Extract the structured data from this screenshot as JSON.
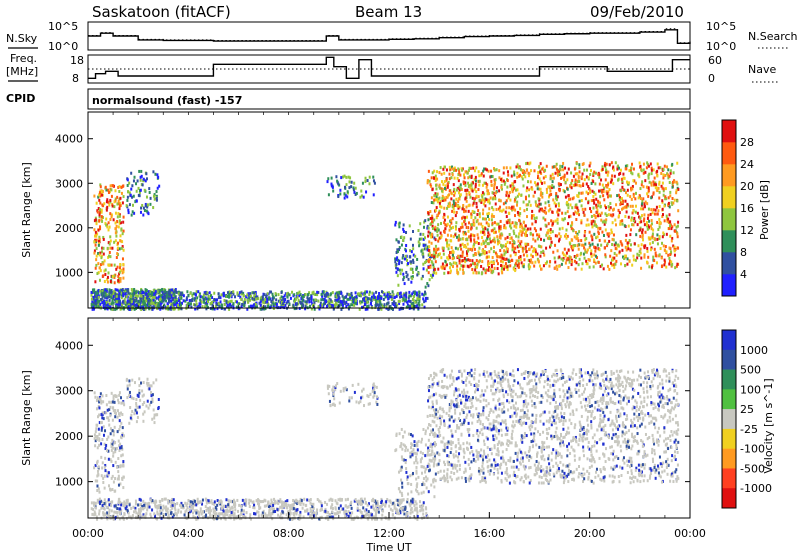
{
  "header": {
    "station": "Saskatoon (fitACF)",
    "beam": "Beam 13",
    "date": "09/Feb/2010",
    "cpid_label": "CPID",
    "cpid_value": "normalsound (fast) -157"
  },
  "chart_data": [
    {
      "type": "line",
      "panel": "noise",
      "left_label": "N.Sky",
      "right_label": "N.Search",
      "y_scale": "log",
      "ytick_labels": [
        "10^5",
        "10^0"
      ],
      "right_tick_labels": [
        "10^5",
        "10^0"
      ],
      "x": [
        0,
        0.5,
        1,
        2,
        3,
        4,
        5,
        6,
        7,
        8,
        9,
        9.5,
        10,
        11,
        12,
        13,
        14,
        15,
        16,
        17,
        18,
        19,
        20,
        21,
        22,
        23,
        23.5,
        24
      ],
      "series": [
        {
          "values": [
            2.5,
            3.0,
            2.5,
            1.8,
            1.7,
            1.7,
            1.6,
            1.6,
            1.6,
            1.6,
            1.6,
            2.5,
            1.8,
            1.8,
            1.9,
            2.0,
            2.2,
            2.4,
            2.5,
            2.6,
            2.8,
            2.9,
            3.0,
            3.0,
            3.2,
            3.6,
            1.2,
            1.5
          ],
          "style": "solid"
        },
        {
          "values": [
            2.6,
            3.1,
            2.6,
            1.9,
            1.8,
            1.8,
            1.7,
            1.7,
            1.7,
            1.7,
            1.7,
            2.6,
            1.9,
            1.9,
            2.0,
            2.1,
            2.3,
            2.5,
            2.6,
            2.7,
            2.9,
            3.0,
            3.1,
            3.1,
            3.3,
            3.8,
            1.3,
            1.6
          ],
          "style": "dotted"
        }
      ],
      "ylim": [
        0,
        5
      ]
    },
    {
      "type": "line",
      "panel": "frequency",
      "left_label": "Freq.",
      "left_unit": "[MHz]",
      "right_label": "Nave",
      "yticks_left": [
        8,
        18
      ],
      "yticks_right": [
        0,
        60
      ],
      "x": [
        0,
        0.3,
        0.7,
        1.2,
        3.5,
        4.5,
        5.0,
        6.0,
        9.0,
        9.5,
        9.8,
        10.3,
        10.8,
        11.3,
        12.0,
        14.0,
        15.0,
        17.0,
        18.0,
        19.0,
        19.5,
        20.0,
        20.7,
        21.5,
        22.0,
        23.0,
        23.3,
        24.0
      ],
      "series": [
        {
          "values": [
            9,
            11,
            12,
            10,
            10,
            10,
            15,
            15,
            15,
            18,
            14,
            9,
            17,
            10,
            10,
            10,
            10,
            10,
            14,
            14,
            14,
            14,
            12,
            12,
            12,
            12,
            17,
            17
          ],
          "style": "solid"
        },
        {
          "values": [
            13,
            13,
            13,
            13,
            13,
            13,
            13,
            13,
            13,
            13,
            13,
            13,
            13,
            13,
            13,
            13,
            13,
            13,
            13,
            13,
            13,
            13,
            13,
            13,
            13,
            13,
            13,
            13
          ],
          "style": "dotted"
        }
      ],
      "ylim": [
        7,
        19
      ]
    },
    {
      "type": "heatmap",
      "panel": "power",
      "ylabel": "Slant Range [km]",
      "yticks": [
        1000,
        2000,
        3000,
        4000
      ],
      "ylim": [
        200,
        4600
      ],
      "xlim": [
        0,
        24
      ],
      "colorbar_label": "Power [dB]",
      "colorbar_ticks": [
        "28",
        "24",
        "20",
        "16",
        "12",
        "8",
        "4"
      ],
      "colorbar_colors": [
        "#2020ff",
        "#3050a0",
        "#2f8f5a",
        "#8fc63f",
        "#f0d020",
        "#ff9a20",
        "#ff5a10",
        "#e01010"
      ]
    },
    {
      "type": "heatmap",
      "panel": "velocity",
      "ylabel": "Slant Range [km]",
      "yticks": [
        1000,
        2000,
        3000,
        4000
      ],
      "ylim": [
        200,
        4600
      ],
      "xlim": [
        0,
        24
      ],
      "colorbar_label": "Velocity [m s^-1]",
      "colorbar_ticks": [
        "1000",
        "500",
        "100",
        "25",
        "-25",
        "-100",
        "-500",
        "-1000"
      ],
      "colorbar_colors": [
        "#e01010",
        "#ff4020",
        "#ff9a20",
        "#f0d020",
        "#c8c8c0",
        "#50c040",
        "#2f8f5a",
        "#3050a0",
        "#2030d0"
      ],
      "xticks": [
        "00:00",
        "04:00",
        "08:00",
        "12:00",
        "16:00",
        "20:00",
        "00:00"
      ],
      "xlabel": "Time UT"
    }
  ]
}
